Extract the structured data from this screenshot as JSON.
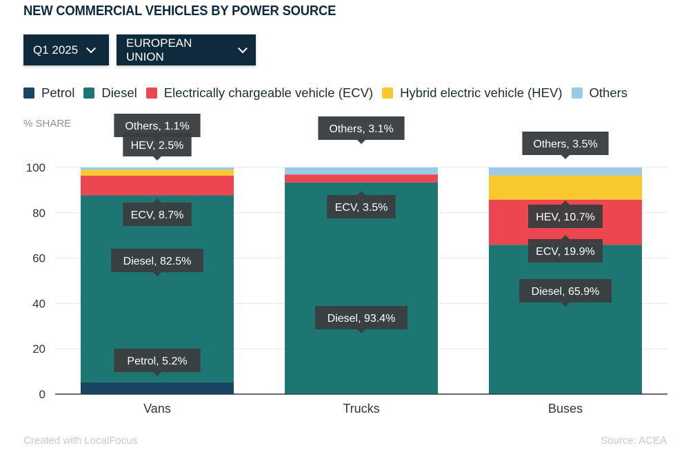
{
  "header": {
    "title": "NEW COMMERCIAL VEHICLES BY POWER SOURCE"
  },
  "filters": {
    "period": "Q1 2025",
    "region": "EUROPEAN UNION"
  },
  "footer": {
    "credit": "Created with LocalFocus",
    "source": "Source:  ACEA"
  },
  "colors": {
    "Petrol": "#1a4562",
    "Diesel": "#1e7673",
    "ECV": "#ec4651",
    "HEV": "#f9c82e",
    "Others": "#9bcae6"
  },
  "chart_data": {
    "type": "bar",
    "stacked": true,
    "ylabel": "% SHARE",
    "ylim": [
      0,
      100
    ],
    "yticks": [
      0,
      20,
      40,
      60,
      80,
      100
    ],
    "grid": true,
    "legend_position": "top",
    "categories": [
      "Vans",
      "Trucks",
      "Buses"
    ],
    "series": [
      {
        "name": "Petrol",
        "legend": "Petrol",
        "key": "Petrol",
        "values": [
          5.2,
          0,
          0
        ]
      },
      {
        "name": "Diesel",
        "legend": "Diesel",
        "key": "Diesel",
        "values": [
          82.5,
          93.4,
          65.9
        ]
      },
      {
        "name": "ECV",
        "legend": "Electrically chargeable vehicle (ECV)",
        "key": "ECV",
        "values": [
          8.7,
          3.5,
          19.9
        ]
      },
      {
        "name": "HEV",
        "legend": "Hybrid electric vehicle (HEV)",
        "key": "HEV",
        "values": [
          2.5,
          0,
          10.7
        ]
      },
      {
        "name": "Others",
        "legend": "Others",
        "key": "Others",
        "values": [
          1.1,
          3.1,
          3.5
        ]
      }
    ],
    "annotations": [
      {
        "category": "Vans",
        "series": "Petrol",
        "text": "Petrol, 5.2%"
      },
      {
        "category": "Vans",
        "series": "Diesel",
        "text": "Diesel, 82.5%"
      },
      {
        "category": "Vans",
        "series": "ECV",
        "text": "ECV, 8.7%"
      },
      {
        "category": "Vans",
        "series": "HEV",
        "text": "HEV, 2.5%"
      },
      {
        "category": "Vans",
        "series": "Others",
        "text": "Others, 1.1%"
      },
      {
        "category": "Trucks",
        "series": "Diesel",
        "text": "Diesel, 93.4%"
      },
      {
        "category": "Trucks",
        "series": "ECV",
        "text": "ECV, 3.5%"
      },
      {
        "category": "Trucks",
        "series": "Others",
        "text": "Others, 3.1%"
      },
      {
        "category": "Buses",
        "series": "Diesel",
        "text": "Diesel, 65.9%"
      },
      {
        "category": "Buses",
        "series": "ECV",
        "text": "ECV, 19.9%"
      },
      {
        "category": "Buses",
        "series": "HEV",
        "text": "HEV, 10.7%"
      },
      {
        "category": "Buses",
        "series": "Others",
        "text": "Others, 3.5%"
      }
    ]
  }
}
